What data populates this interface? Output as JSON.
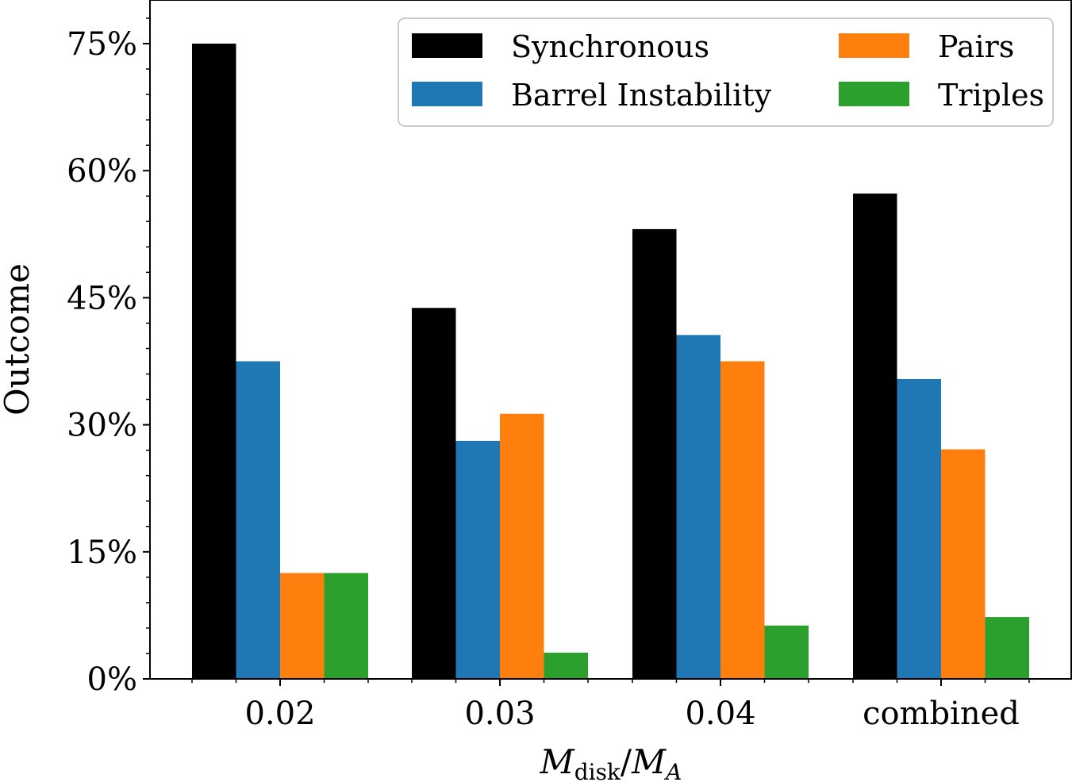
{
  "chart_data": {
    "type": "bar",
    "categories": [
      "0.02",
      "0.03",
      "0.04",
      "combined"
    ],
    "series": [
      {
        "name": "Synchronous",
        "color": "#000000",
        "values": [
          75.0,
          43.8,
          53.1,
          57.3
        ]
      },
      {
        "name": "Barrel Instability",
        "color": "#1f77b4",
        "values": [
          37.5,
          28.1,
          40.6,
          35.4
        ]
      },
      {
        "name": "Pairs",
        "color": "#ff7f0e",
        "values": [
          12.5,
          31.3,
          37.5,
          27.1
        ]
      },
      {
        "name": "Triples",
        "color": "#2ca02c",
        "values": [
          12.5,
          3.1,
          6.3,
          7.3
        ]
      }
    ],
    "yticks": [
      0,
      15,
      30,
      45,
      60,
      75
    ],
    "ytick_labels": [
      "0%",
      "15%",
      "30%",
      "45%",
      "60%",
      "75%"
    ],
    "ylim": [
      0,
      80
    ],
    "ylabel": "Outcome",
    "xlabel_parts": {
      "base": "M",
      "sub1": "disk",
      "slash": "/",
      "base2": "M",
      "sub2": "A"
    },
    "legend_position": "top-right"
  }
}
